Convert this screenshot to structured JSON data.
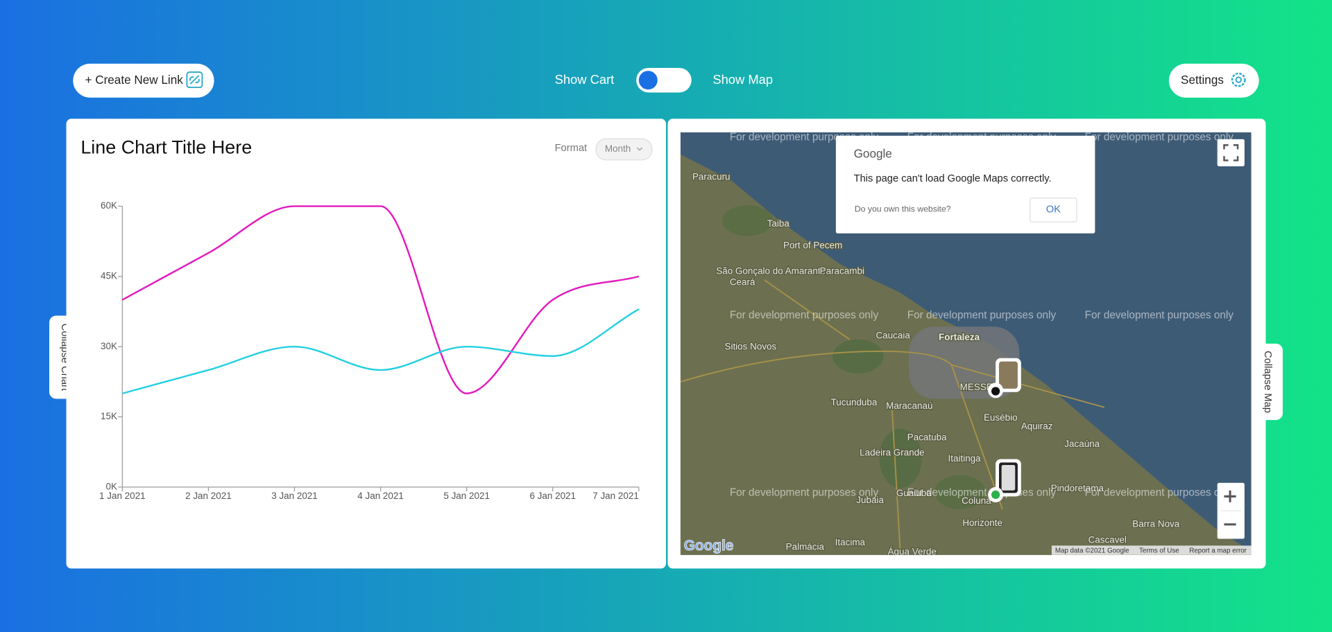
{
  "header": {
    "create_link": "+ Create New Link",
    "show_cart": "Show Cart",
    "show_map": "Show Map",
    "settings": "Settings"
  },
  "chart_panel": {
    "collapse": "Collapse Chart",
    "format_label": "Format",
    "format_value": "Month"
  },
  "chart_data": {
    "type": "line",
    "title": "Line Chart Title Here",
    "categories": [
      "1 Jan 2021",
      "2 Jan 2021",
      "3 Jan 2021",
      "4 Jan 2021",
      "5 Jan 2021",
      "6 Jan 2021",
      "7 Jan 2021"
    ],
    "series": [
      {
        "color": "#e21bbd",
        "values": [
          40000,
          50000,
          60000,
          60000,
          20000,
          40000,
          45000
        ]
      },
      {
        "color": "#22d0e0",
        "values": [
          20000,
          25000,
          30000,
          25000,
          30000,
          28000,
          38000
        ]
      }
    ],
    "ylim": [
      0,
      60000
    ],
    "yticks": [
      {
        "value": 0,
        "label": "0K"
      },
      {
        "value": 15000,
        "label": "15K"
      },
      {
        "value": 30000,
        "label": "30K"
      },
      {
        "value": 45000,
        "label": "45K"
      },
      {
        "value": 60000,
        "label": "60K"
      }
    ]
  },
  "map_panel": {
    "collapse": "Collapse Map",
    "watermark": "For development purposes only",
    "dialog": {
      "brand": "Google",
      "message": "This page can't load Google Maps correctly.",
      "question": "Do you own this website?",
      "ok": "OK"
    },
    "logo": "Google",
    "footer": [
      "Map data ©2021 Google",
      "Terms of Use",
      "Report a map error"
    ],
    "places": [
      "Fortaleza",
      "Caucaia",
      "Maracanaú",
      "Paracuru",
      "Taiba",
      "Port of Pecem",
      "São Gonçalo do Amarante,",
      "Ceará",
      "Paracambi",
      "Sitios Novos",
      "Tucunduba",
      "Eusébio",
      "Aquiraz",
      "Pacatuba",
      "Itaitinga",
      "Horizonte",
      "Pindoretama",
      "Jacaúna",
      "Cascavel",
      "Barra Nova",
      "Guaiuba",
      "Palmácia",
      "Itacima",
      "Água Verde",
      "Jubaia",
      "Coluna",
      "Ladeira Grande",
      "MESSEJANA"
    ]
  }
}
